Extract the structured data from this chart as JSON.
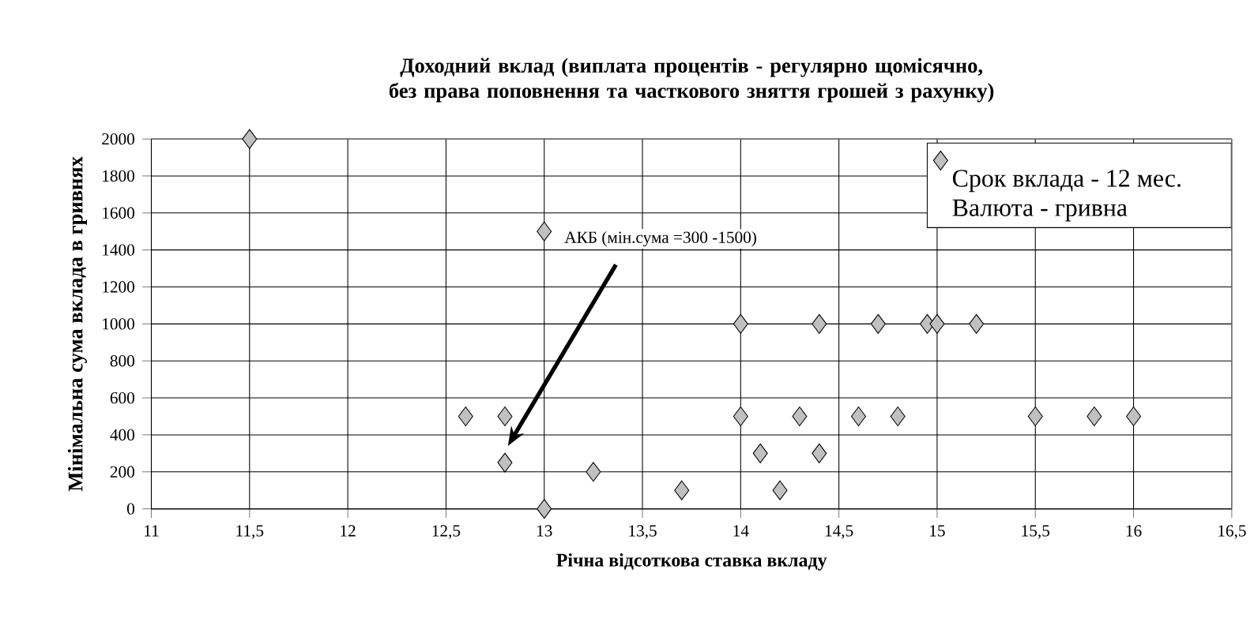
{
  "chart_data": {
    "type": "scatter",
    "title": "Доходний вклад (виплата процентів - регулярно щомісячно, без права поповнення та часткового зняття грошей з рахунку)",
    "xlabel": "Річна відсоткова ставка вкладу",
    "ylabel": "Мінімальна сума вклада в гривнях",
    "series": [
      {
        "name": "Срок вклада - 12 мес. Валюта - гривна",
        "color": "#c0c0c0",
        "x": [
          11.5,
          13,
          12.6,
          12.8,
          12.8,
          13,
          13.25,
          13.7,
          14,
          14,
          14.1,
          14.2,
          14.3,
          14.4,
          14.4,
          14.6,
          14.7,
          14.8,
          14.95,
          15,
          15.2,
          15.5,
          15.8,
          16
        ],
        "values": [
          2000,
          1500,
          500,
          500,
          250,
          0,
          200,
          100,
          1000,
          500,
          300,
          100,
          500,
          1000,
          300,
          500,
          1000,
          500,
          1000,
          1000,
          1000,
          500,
          500,
          500
        ]
      }
    ],
    "annotations": [
      "АКБ (мін.сума =300 -1500)"
    ],
    "xlim": [
      11,
      16.5
    ],
    "xticks": [
      11,
      {
        "value": 11.5,
        "label": "11,5"
      },
      12,
      {
        "value": 12.5,
        "label": "12,5"
      },
      13,
      {
        "value": 13.5,
        "label": "13,5"
      },
      14,
      {
        "value": 14.5,
        "label": "14,5"
      },
      15,
      {
        "value": 15.5,
        "label": "15,5"
      },
      16,
      {
        "value": 16.5,
        "label": "16,5"
      }
    ],
    "ylim": [
      0,
      2000
    ],
    "yticks": [
      0,
      200,
      400,
      600,
      800,
      1000,
      1200,
      1400,
      1600,
      1800,
      2000
    ],
    "grid": true,
    "legend": "top right",
    "marker": "diamond"
  }
}
